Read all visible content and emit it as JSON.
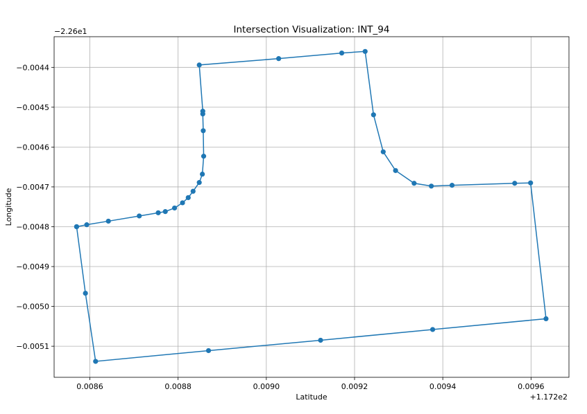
{
  "chart_data": {
    "type": "line",
    "title": "Intersection Visualization: INT_94",
    "xlabel": "Latitude",
    "ylabel": "Longitude",
    "x_offset_label": "+1.172e2",
    "y_offset_label": "−2.26e1",
    "xlim": [
      0.008519,
      0.009686
    ],
    "ylim": [
      -0.005178,
      -0.004323
    ],
    "x_ticks": [
      0.0086,
      0.0088,
      0.009,
      0.0092,
      0.0094,
      0.0096
    ],
    "x_tick_labels": [
      "0.0086",
      "0.0088",
      "0.0090",
      "0.0092",
      "0.0094",
      "0.0096"
    ],
    "y_ticks": [
      -0.0044,
      -0.0045,
      -0.0046,
      -0.0047,
      -0.0048,
      -0.0049,
      -0.005,
      -0.0051
    ],
    "y_tick_labels": [
      "−0.0044",
      "−0.0045",
      "−0.0046",
      "−0.0047",
      "−0.0048",
      "−0.0049",
      "−0.0050",
      "−0.0051"
    ],
    "grid": true,
    "color": "#1f77b4",
    "series": [
      {
        "points": [
          [
            0.00857,
            -0.0048
          ],
          [
            0.008593,
            -0.004795
          ],
          [
            0.008642,
            -0.004786
          ],
          [
            0.008712,
            -0.004773
          ],
          [
            0.008755,
            -0.004765
          ],
          [
            0.008771,
            -0.004762
          ],
          [
            0.008792,
            -0.004753
          ],
          [
            0.00881,
            -0.00474
          ],
          [
            0.008823,
            -0.004727
          ],
          [
            0.008834,
            -0.004711
          ],
          [
            0.008848,
            -0.004689
          ],
          [
            0.008855,
            -0.004668
          ],
          [
            0.008858,
            -0.004623
          ],
          [
            0.008857,
            -0.004559
          ],
          [
            0.008856,
            -0.004517
          ],
          [
            0.008856,
            -0.00451
          ],
          [
            0.008848,
            -0.004394
          ],
          [
            0.009028,
            -0.004378
          ],
          [
            0.009171,
            -0.004364
          ],
          [
            0.009224,
            -0.00436
          ],
          [
            0.009243,
            -0.004519
          ],
          [
            0.009265,
            -0.004612
          ],
          [
            0.009293,
            -0.004659
          ],
          [
            0.009335,
            -0.004691
          ],
          [
            0.009374,
            -0.004698
          ],
          [
            0.009421,
            -0.004696
          ],
          [
            0.009563,
            -0.004691
          ],
          [
            0.009599,
            -0.00469
          ],
          [
            0.009634,
            -0.005031
          ],
          [
            0.009377,
            -0.005058
          ],
          [
            0.009123,
            -0.005085
          ],
          [
            0.008869,
            -0.005111
          ],
          [
            0.008613,
            -0.005138
          ],
          [
            0.00859,
            -0.004967
          ],
          [
            0.00857,
            -0.0048
          ]
        ]
      }
    ]
  }
}
